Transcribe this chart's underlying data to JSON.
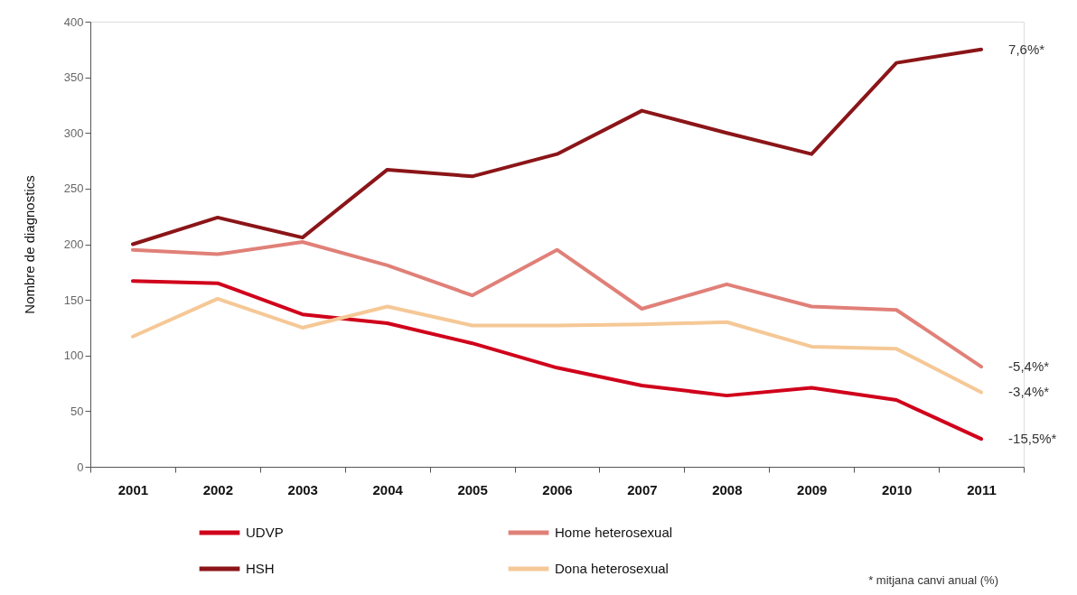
{
  "chart_data": {
    "type": "line",
    "ylabel": "Nombre de diagnostics",
    "categories": [
      "2001",
      "2002",
      "2003",
      "2004",
      "2005",
      "2006",
      "2007",
      "2008",
      "2009",
      "2010",
      "2011"
    ],
    "series": [
      {
        "name": "UDVP",
        "color": "#d0021b",
        "values": [
          167,
          165,
          137,
          129,
          111,
          89,
          73,
          64,
          71,
          60,
          25
        ]
      },
      {
        "name": "Home heterosexual",
        "color": "#e08078",
        "values": [
          195,
          191,
          202,
          181,
          154,
          195,
          142,
          164,
          144,
          141,
          90
        ]
      },
      {
        "name": "HSH",
        "color": "#8b1518",
        "values": [
          200,
          224,
          206,
          267,
          261,
          281,
          320,
          300,
          281,
          363,
          375
        ]
      },
      {
        "name": "Dona heterosexual",
        "color": "#f5c896",
        "values": [
          117,
          151,
          125,
          144,
          127,
          127,
          128,
          130,
          108,
          106,
          67
        ]
      }
    ],
    "ylim": [
      0,
      400
    ],
    "yticks": [
      0,
      50,
      100,
      150,
      200,
      250,
      300,
      350,
      400
    ],
    "grid": false,
    "legend": "bottom",
    "line_style": "solid",
    "annotations": [
      {
        "text": "7,6%*",
        "x": "2011",
        "y": 375
      },
      {
        "text": "-5,4%*",
        "x": "2011",
        "y": 90
      },
      {
        "text": "-3,4%*",
        "x": "2011",
        "y": 67
      },
      {
        "text": "-15,5%*",
        "x": "2011",
        "y": 25
      },
      "* mitjana canvi anual (%)"
    ]
  }
}
